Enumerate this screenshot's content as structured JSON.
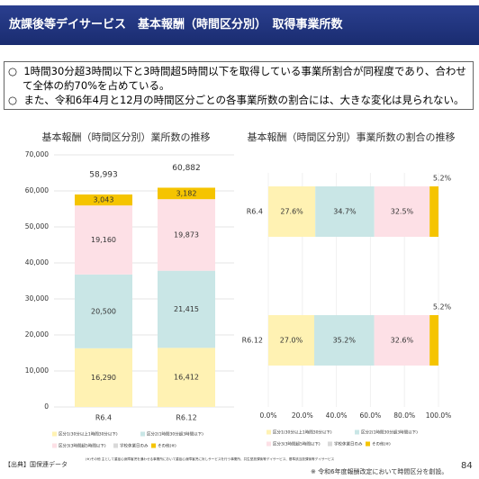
{
  "header": {
    "title": "放課後等デイサービス　基本報酬（時間区分別）　取得事業所数"
  },
  "bullets": [
    "1時間30分超3時間以下と3時間超5時間以下を取得している事業所割合が同程度であり、合わせて全体の約70%を占めている。",
    "また、令和6年4月と12月の時間区分ごとの各事業所数の割合には、大きな変化は見られない。"
  ],
  "chart_data": [
    {
      "type": "stacked_bar",
      "title": "基本報酬（時間区分別）業所数の推移",
      "categories": [
        "R6.4",
        "R6.12"
      ],
      "series": [
        {
          "name": "区分1(30分以上1時間30分以下)",
          "color": "#fff2b3",
          "values": [
            16290,
            16412
          ],
          "value_labels": [
            "16,290",
            "16,412"
          ]
        },
        {
          "name": "区分2(1時間30分超3時間以下)",
          "color": "#c9e6e6",
          "values": [
            20500,
            21415
          ],
          "value_labels": [
            "20,500",
            "21,415"
          ]
        },
        {
          "name": "区分3(3時間超5時間以下)",
          "color": "#fde0e6",
          "values": [
            19160,
            19873
          ],
          "value_labels": [
            "19,160",
            "19,873"
          ]
        },
        {
          "name": "学校休業日のみ",
          "color": "#d9d9d9",
          "values": [
            null,
            null
          ]
        },
        {
          "name": "その他(※)",
          "color": "#f5c400",
          "values": [
            3043,
            3182
          ],
          "value_labels": [
            "3,043",
            "3,182"
          ]
        }
      ],
      "totals": [
        58993,
        60882
      ],
      "total_labels": [
        "58,993",
        "60,882"
      ],
      "ylim": [
        0,
        70000
      ],
      "yticks": [
        0,
        {
          "value": 10000,
          "label": "10,000"
        },
        {
          "value": 20000,
          "label": "20,000"
        },
        {
          "value": 30000,
          "label": "30,000"
        },
        {
          "value": 40000,
          "label": "40,000"
        },
        {
          "value": 50000,
          "label": "50,000"
        },
        {
          "value": 60000,
          "label": "60,000"
        },
        {
          "value": 70000,
          "label": "70,000"
        }
      ],
      "grid": true
    },
    {
      "type": "stacked_barh",
      "title": "基本報酬（時間区分別）事業所数の割合の推移",
      "categories": [
        "R6.4",
        "R6.12"
      ],
      "series": [
        {
          "name": "区分1(30分以上1時間30分以下)",
          "color": "#fff2b3",
          "values": [
            27.6,
            27.0
          ],
          "value_labels": [
            "27.6%",
            "27.0%"
          ]
        },
        {
          "name": "区分2(1時間30分超3時間以下)",
          "color": "#c9e6e6",
          "values": [
            34.7,
            35.2
          ],
          "value_labels": [
            "34.7%",
            "35.2%"
          ]
        },
        {
          "name": "区分3(3時間超5時間以下)",
          "color": "#fde0e6",
          "values": [
            32.5,
            32.6
          ],
          "value_labels": [
            "32.5%",
            "32.6%"
          ]
        },
        {
          "name": "学校休業日のみ",
          "color": "#d9d9d9",
          "values": [
            null,
            null
          ]
        },
        {
          "name": "その他(※)",
          "color": "#f5c400",
          "values": [
            5.2,
            5.2
          ],
          "value_labels": [
            "5.2%",
            "5.2%"
          ]
        }
      ],
      "xlim": [
        0,
        100
      ],
      "xticks": [
        {
          "value": 0,
          "label": "0.0%"
        },
        {
          "value": 20,
          "label": "20.0%"
        },
        {
          "value": 40,
          "label": "40.0%"
        },
        {
          "value": 60,
          "label": "60.0%"
        },
        {
          "value": 80,
          "label": "80.0%"
        },
        {
          "value": 100,
          "label": "100.0%"
        }
      ],
      "grid": true
    }
  ],
  "source": "【出典】国保連データ",
  "footnote": "(※)その他 主として重症心身障害児を通わせる事業所において重症心身障害児に対しサービスを行う事業所、共生型放課後等デイサービス、基準該当放課後等デイサービス",
  "note": "※ 令和6年度報酬改定において時間区分を創設。",
  "page_number": "84"
}
